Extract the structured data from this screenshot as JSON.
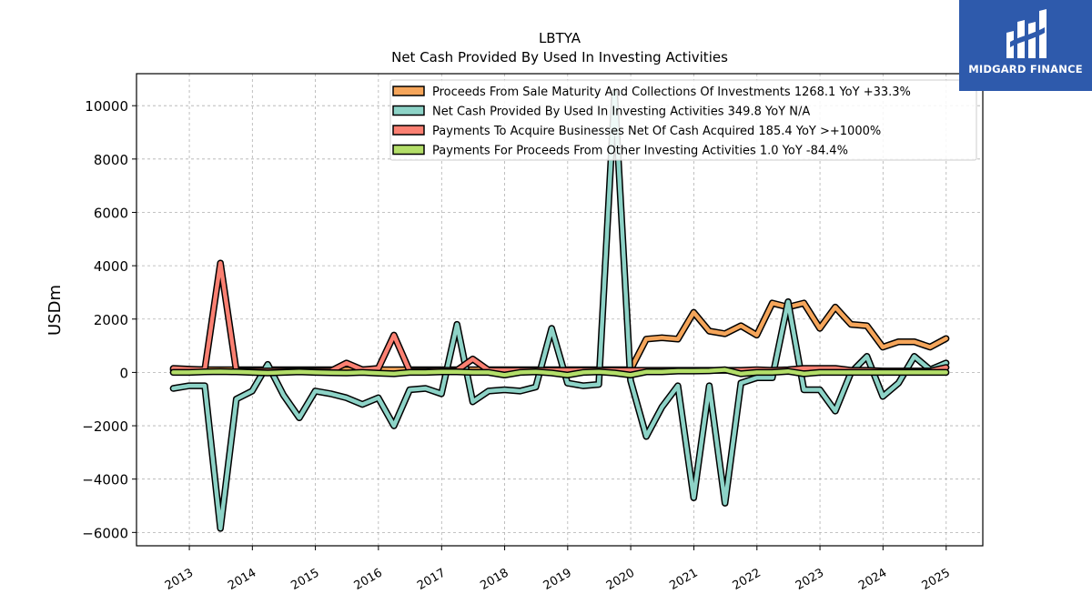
{
  "brand": {
    "name": "MIDGARD FINANCE",
    "icon": "midgard-logo-icon",
    "color": "#2e5aac"
  },
  "chart_data": {
    "type": "line",
    "title": "LBTYA",
    "subtitle": "Net Cash Provided By Used In Investing Activities",
    "ylabel": "USDm",
    "xlabel": "",
    "xlim": [
      "2012-03-01",
      "2025-08-01"
    ],
    "ylim": [
      -6500,
      11200
    ],
    "yticks": [
      -6000,
      -4000,
      -2000,
      0,
      2000,
      4000,
      6000,
      8000,
      10000
    ],
    "ytick_labels": [
      "−6000",
      "−4000",
      "−2000",
      "0",
      "2000",
      "4000",
      "6000",
      "8000",
      "10000"
    ],
    "xtick_labels": [
      "2013",
      "2014",
      "2015",
      "2016",
      "2017",
      "2018",
      "2019",
      "2020",
      "2021",
      "2022",
      "2023",
      "2024",
      "2025"
    ],
    "grid": true,
    "legend_position": "top-right",
    "x": [
      "2012-09-30",
      "2012-12-31",
      "2013-03-31",
      "2013-06-30",
      "2013-09-30",
      "2013-12-31",
      "2014-03-31",
      "2014-06-30",
      "2014-09-30",
      "2014-12-31",
      "2015-03-31",
      "2015-06-30",
      "2015-09-30",
      "2015-12-31",
      "2016-03-31",
      "2016-06-30",
      "2016-09-30",
      "2016-12-31",
      "2017-03-31",
      "2017-06-30",
      "2017-09-30",
      "2017-12-31",
      "2018-03-31",
      "2018-06-30",
      "2018-09-30",
      "2018-12-31",
      "2019-03-31",
      "2019-06-30",
      "2019-09-30",
      "2019-12-31",
      "2020-03-31",
      "2020-06-30",
      "2020-09-30",
      "2020-12-31",
      "2021-03-31",
      "2021-06-30",
      "2021-09-30",
      "2021-12-31",
      "2022-03-31",
      "2022-06-30",
      "2022-09-30",
      "2022-12-31",
      "2023-03-31",
      "2023-06-30",
      "2023-09-30",
      "2023-12-31",
      "2024-03-31",
      "2024-06-30",
      "2024-09-30",
      "2024-12-31"
    ],
    "series": [
      {
        "name": "Proceeds From Sale Maturity And Collections Of Investments",
        "legend": "Proceeds From Sale Maturity And Collections Of Investments  1268.1 YoY +33.3%",
        "color": "#f5a55a",
        "values": [
          100,
          100,
          100,
          100,
          100,
          100,
          100,
          100,
          100,
          100,
          100,
          100,
          100,
          100,
          100,
          100,
          100,
          100,
          100,
          100,
          100,
          100,
          100,
          100,
          100,
          100,
          100,
          100,
          100,
          100,
          1250,
          1300,
          1250,
          2250,
          1550,
          1450,
          1750,
          1400,
          2600,
          2450,
          2600,
          1650,
          2450,
          1800,
          1750,
          950,
          1150,
          1150,
          950,
          1270
        ]
      },
      {
        "name": "Net Cash Provided By Used In Investing Activities",
        "legend": "Net Cash Provided By Used In Investing Activities  349.8 YoY N/A",
        "color": "#8dd3c7",
        "values": [
          -600,
          -500,
          -500,
          -5850,
          -1000,
          -700,
          300,
          -850,
          -1700,
          -700,
          -800,
          -950,
          -1200,
          -950,
          -2000,
          -650,
          -600,
          -800,
          1800,
          -1100,
          -700,
          -650,
          -700,
          -550,
          1650,
          -400,
          -500,
          -450,
          10500,
          -300,
          -2400,
          -1300,
          -500,
          -4700,
          -500,
          -4900,
          -400,
          -200,
          -200,
          2650,
          -650,
          -650,
          -1450,
          0,
          600,
          -900,
          -400,
          600,
          100,
          350
        ]
      },
      {
        "name": "Payments To Acquire Businesses Net Of Cash Acquired",
        "legend": "Payments To Acquire Businesses Net Of Cash Acquired  185.4 YoY >+1000%",
        "color": "#fb8072",
        "values": [
          150,
          120,
          100,
          4100,
          50,
          50,
          50,
          50,
          50,
          50,
          50,
          350,
          100,
          150,
          1400,
          50,
          50,
          80,
          80,
          500,
          80,
          80,
          80,
          80,
          80,
          80,
          80,
          80,
          80,
          80,
          80,
          80,
          80,
          80,
          80,
          80,
          80,
          100,
          80,
          100,
          150,
          150,
          150,
          80,
          80,
          50,
          50,
          50,
          50,
          185
        ]
      },
      {
        "name": "Payments For Proceeds From Other Investing Activities",
        "legend": "Payments For Proceeds From Other Investing Activities  1.0 YoY -84.4%",
        "color": "#b3de69",
        "values": [
          0,
          0,
          20,
          30,
          20,
          0,
          -20,
          0,
          20,
          0,
          -10,
          -20,
          0,
          -30,
          -50,
          0,
          0,
          20,
          20,
          0,
          0,
          -100,
          0,
          20,
          -20,
          -100,
          0,
          20,
          -20,
          -100,
          20,
          20,
          50,
          50,
          60,
          100,
          -50,
          0,
          0,
          40,
          -50,
          0,
          0,
          0,
          0,
          0,
          0,
          0,
          0,
          1
        ]
      }
    ]
  }
}
